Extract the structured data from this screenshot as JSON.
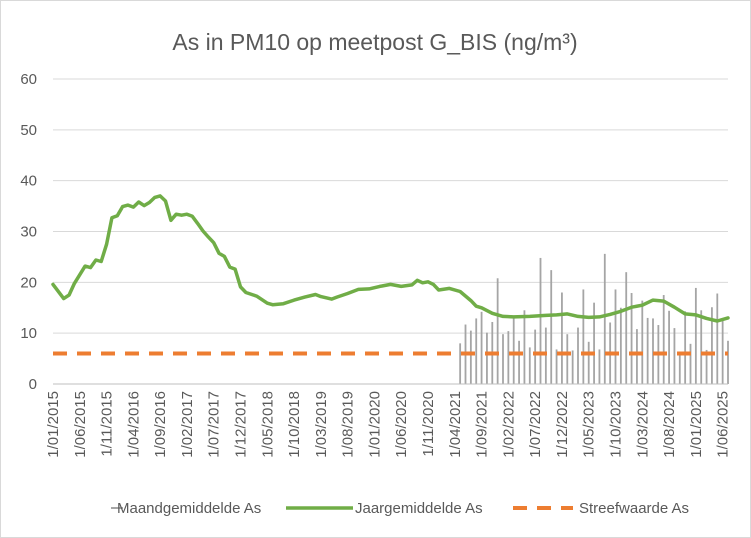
{
  "chart_data": {
    "type": "line",
    "title": "As in PM10 op meetpost G_BIS (ng/m³)",
    "xlabel": "",
    "ylabel": "",
    "ylim": [
      0,
      60
    ],
    "yticks": [
      0,
      10,
      20,
      30,
      40,
      50,
      60
    ],
    "x_range": [
      "2015-01",
      "2025-07"
    ],
    "x_tick_labels": [
      "1/01/2015",
      "1/06/2015",
      "1/11/2015",
      "1/04/2016",
      "1/09/2016",
      "1/02/2017",
      "1/07/2017",
      "1/12/2017",
      "1/05/2018",
      "1/10/2018",
      "1/03/2019",
      "1/08/2019",
      "1/01/2020",
      "1/06/2020",
      "1/11/2020",
      "1/04/2021",
      "1/09/2021",
      "1/02/2022",
      "1/07/2022",
      "1/12/2022",
      "1/05/2023",
      "1/10/2023",
      "1/03/2024",
      "1/08/2024",
      "1/01/2025",
      "1/06/2025"
    ],
    "grid": true,
    "legend_position": "bottom",
    "series": [
      {
        "name": "Maandgemiddelde As",
        "style": "bar",
        "color": "#a5a5a5",
        "x": [
          "2021-05",
          "2021-06",
          "2021-07",
          "2021-08",
          "2021-09",
          "2021-10",
          "2021-11",
          "2021-12",
          "2022-01",
          "2022-02",
          "2022-03",
          "2022-04",
          "2022-05",
          "2022-06",
          "2022-07",
          "2022-08",
          "2022-09",
          "2022-10",
          "2022-11",
          "2022-12",
          "2023-01",
          "2023-02",
          "2023-03",
          "2023-04",
          "2023-05",
          "2023-06",
          "2023-07",
          "2023-08",
          "2023-09",
          "2023-10",
          "2023-11",
          "2023-12",
          "2024-01",
          "2024-02",
          "2024-03",
          "2024-04",
          "2024-05",
          "2024-06",
          "2024-07",
          "2024-08",
          "2024-09",
          "2024-10",
          "2024-11",
          "2024-12",
          "2025-01",
          "2025-02",
          "2025-03",
          "2025-04",
          "2025-05",
          "2025-06",
          "2025-07"
        ],
        "values": [
          8,
          11.7,
          10.5,
          12.9,
          14.2,
          10.1,
          12.2,
          20.8,
          9.8,
          10.4,
          13.3,
          8.5,
          14.5,
          7.2,
          10.7,
          24.8,
          11.1,
          22.4,
          6.8,
          18.0,
          9.8,
          6.6,
          11.1,
          18.6,
          8.3,
          16.0,
          6.8,
          25.6,
          12.1,
          18.6,
          15.0,
          22.0,
          17.9,
          10.8,
          16.4,
          13.0,
          12.9,
          11.6,
          17.5,
          14.4,
          11.0,
          6.0,
          14.3,
          7.9,
          18.9,
          14.5,
          6.7,
          15.1,
          17.8,
          12.7,
          8.5
        ]
      },
      {
        "name": "Jaargemiddelde As",
        "style": "line",
        "color": "#70ad47",
        "x": [
          "2015-01",
          "2015-03",
          "2015-04",
          "2015-05",
          "2015-06",
          "2015-07",
          "2015-08",
          "2015-09",
          "2015-10",
          "2015-11",
          "2015-12",
          "2016-01",
          "2016-02",
          "2016-03",
          "2016-04",
          "2016-05",
          "2016-06",
          "2016-07",
          "2016-08",
          "2016-09",
          "2016-10",
          "2016-11",
          "2016-12",
          "2017-01",
          "2017-02",
          "2017-03",
          "2017-04",
          "2017-05",
          "2017-06",
          "2017-07",
          "2017-08",
          "2017-09",
          "2017-10",
          "2017-11",
          "2017-12",
          "2018-01",
          "2018-03",
          "2018-05",
          "2018-06",
          "2018-08",
          "2018-10",
          "2018-12",
          "2019-02",
          "2019-03",
          "2019-05",
          "2019-06",
          "2019-08",
          "2019-10",
          "2019-12",
          "2020-02",
          "2020-04",
          "2020-06",
          "2020-08",
          "2020-09",
          "2020-10",
          "2020-11",
          "2020-12",
          "2021-01",
          "2021-03",
          "2021-05",
          "2021-07",
          "2021-08",
          "2021-09",
          "2021-11",
          "2022-01",
          "2022-03",
          "2022-06",
          "2022-09",
          "2022-11",
          "2023-01",
          "2023-03",
          "2023-05",
          "2023-07",
          "2023-09",
          "2023-11",
          "2024-01",
          "2024-03",
          "2024-05",
          "2024-07",
          "2024-09",
          "2024-11",
          "2025-01",
          "2025-03",
          "2025-05",
          "2025-07"
        ],
        "values": [
          19.6,
          16.8,
          17.5,
          19.8,
          21.5,
          23.2,
          22.9,
          24.4,
          24.1,
          27.5,
          32.7,
          33.1,
          34.9,
          35.2,
          34.8,
          35.8,
          35.1,
          35.7,
          36.7,
          37.0,
          36.0,
          32.2,
          33.4,
          33.2,
          33.4,
          33.0,
          31.6,
          30.1,
          28.9,
          27.8,
          25.7,
          25.1,
          23.0,
          22.6,
          19.1,
          18.0,
          17.3,
          15.9,
          15.6,
          15.8,
          16.5,
          17.1,
          17.6,
          17.2,
          16.7,
          17.1,
          17.8,
          18.6,
          18.7,
          19.2,
          19.6,
          19.2,
          19.5,
          20.4,
          19.9,
          20.1,
          19.6,
          18.5,
          18.8,
          18.2,
          16.4,
          15.3,
          15.0,
          13.9,
          13.3,
          13.2,
          13.3,
          13.5,
          13.6,
          13.8,
          13.3,
          13.1,
          13.2,
          13.7,
          14.3,
          15.1,
          15.5,
          16.5,
          16.3,
          15.1,
          13.8,
          13.6,
          12.9,
          12.4,
          13.0
        ]
      },
      {
        "name": "Streefwaarde As",
        "style": "dashed-line",
        "color": "#ed7d31",
        "x": [
          "2015-01",
          "2025-07"
        ],
        "values": [
          6,
          6
        ]
      }
    ]
  }
}
